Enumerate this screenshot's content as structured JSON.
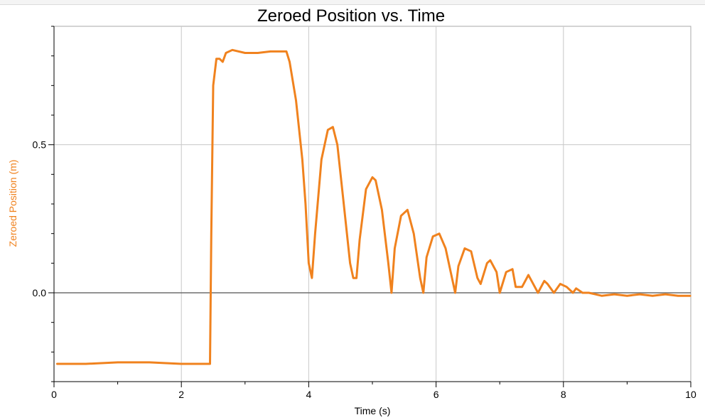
{
  "chart_data": {
    "type": "line",
    "title": "Zeroed Position vs. Time",
    "xlabel": "Time (s)",
    "ylabel": "Zeroed Position (m)",
    "xlim": [
      0,
      10
    ],
    "ylim": [
      -0.3,
      0.9
    ],
    "grid": true,
    "x_ticks": [
      0,
      2,
      4,
      6,
      8,
      10
    ],
    "x_tick_labels": [
      "0",
      "2",
      "4",
      "6",
      "8",
      "10"
    ],
    "y_ticks": [
      0.0,
      0.5
    ],
    "y_tick_labels": [
      "0.0",
      "0.5"
    ],
    "series": [
      {
        "color": "#f0821e",
        "x": [
          0.05,
          0.5,
          1.0,
          1.5,
          2.0,
          2.4,
          2.45,
          2.47,
          2.5,
          2.55,
          2.6,
          2.65,
          2.7,
          2.8,
          3.0,
          3.2,
          3.4,
          3.6,
          3.65,
          3.7,
          3.8,
          3.9,
          3.95,
          4.0,
          4.05,
          4.1,
          4.2,
          4.3,
          4.38,
          4.45,
          4.55,
          4.65,
          4.7,
          4.75,
          4.8,
          4.9,
          5.0,
          5.05,
          5.15,
          5.25,
          5.3,
          5.35,
          5.45,
          5.55,
          5.65,
          5.75,
          5.8,
          5.85,
          5.95,
          6.05,
          6.15,
          6.25,
          6.3,
          6.35,
          6.45,
          6.55,
          6.65,
          6.7,
          6.8,
          6.85,
          6.95,
          7.0,
          7.1,
          7.2,
          7.25,
          7.35,
          7.45,
          7.5,
          7.6,
          7.7,
          7.75,
          7.85,
          7.95,
          8.05,
          8.15,
          8.2,
          8.3,
          8.4,
          8.5,
          8.6,
          8.8,
          9.0,
          9.2,
          9.4,
          9.6,
          9.8,
          9.99
        ],
        "y": [
          -0.24,
          -0.24,
          -0.235,
          -0.235,
          -0.24,
          -0.24,
          -0.24,
          0.2,
          0.7,
          0.79,
          0.79,
          0.78,
          0.81,
          0.82,
          0.81,
          0.81,
          0.815,
          0.815,
          0.815,
          0.78,
          0.65,
          0.45,
          0.3,
          0.1,
          0.05,
          0.2,
          0.45,
          0.55,
          0.56,
          0.5,
          0.3,
          0.1,
          0.05,
          0.05,
          0.18,
          0.35,
          0.39,
          0.38,
          0.28,
          0.1,
          0.0,
          0.15,
          0.26,
          0.28,
          0.2,
          0.05,
          0.0,
          0.12,
          0.19,
          0.2,
          0.15,
          0.05,
          0.0,
          0.09,
          0.15,
          0.14,
          0.05,
          0.03,
          0.1,
          0.11,
          0.07,
          0.0,
          0.07,
          0.08,
          0.02,
          0.02,
          0.06,
          0.04,
          0.0,
          0.04,
          0.03,
          0.0,
          0.03,
          0.02,
          0.0,
          0.015,
          0.0,
          0.0,
          -0.005,
          -0.01,
          -0.005,
          -0.01,
          -0.005,
          -0.01,
          -0.005,
          -0.01,
          -0.01
        ]
      }
    ]
  }
}
